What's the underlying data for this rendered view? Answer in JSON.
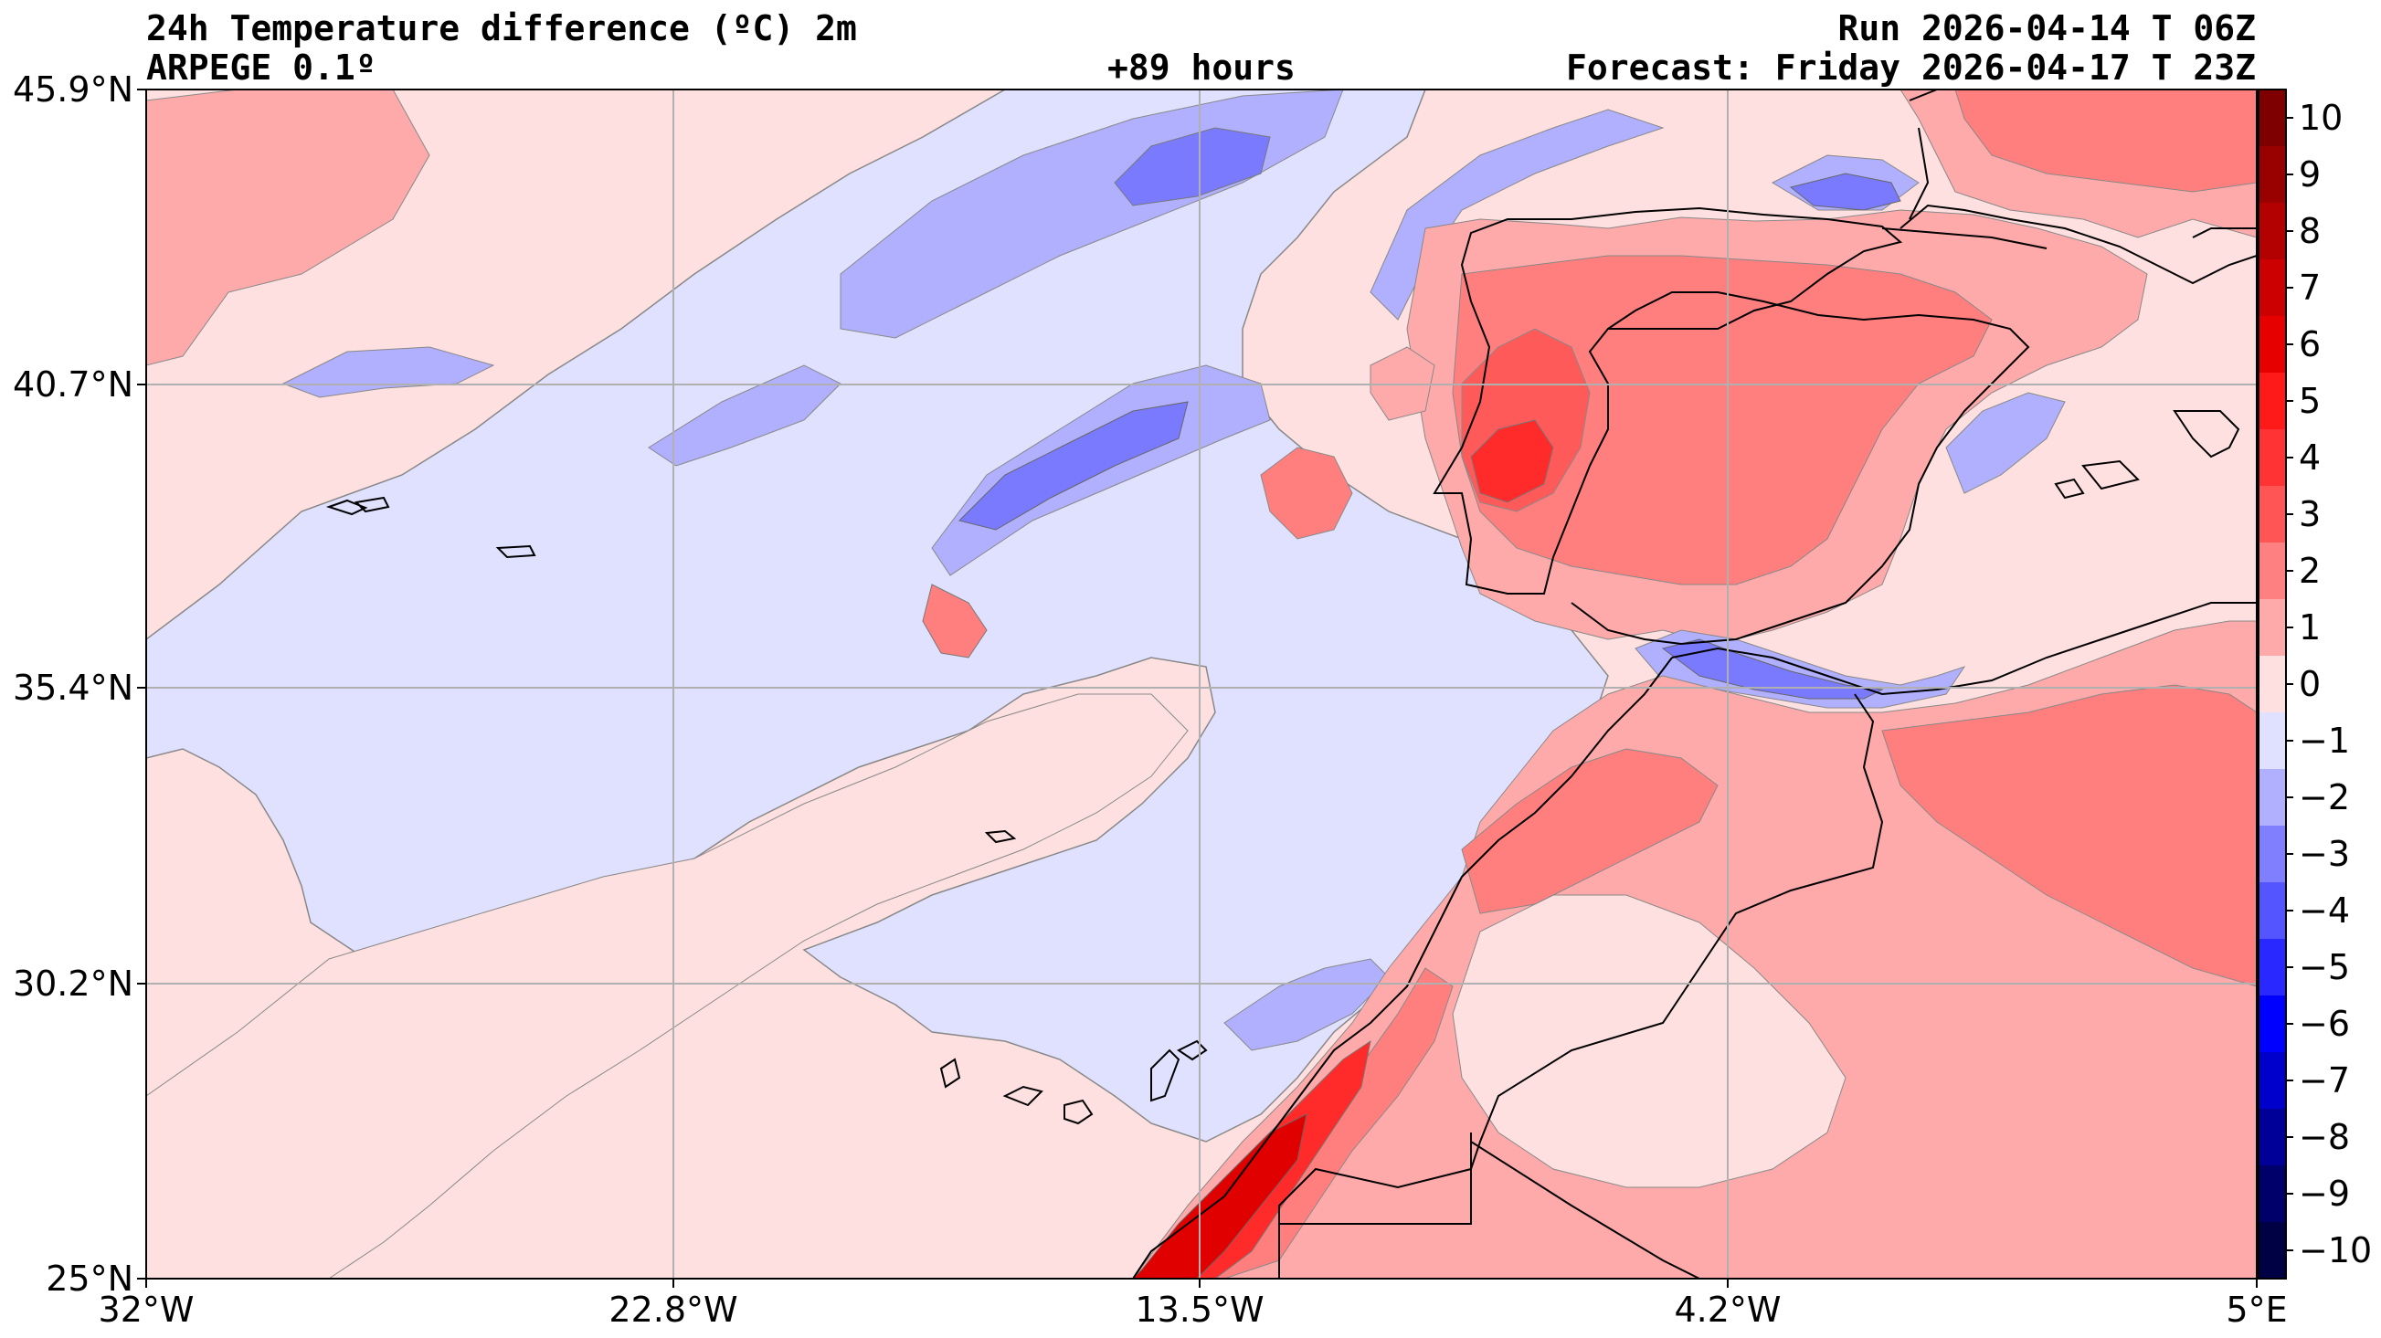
{
  "header": {
    "title": "24h Temperature difference (ºC) 2m",
    "model": "ARPEGE 0.1º",
    "lead": "+89 hours",
    "run": "Run 2026-04-14 T 06Z",
    "forecast": "Forecast: Friday 2026-04-17 T 23Z"
  },
  "axes": {
    "x_ticks": [
      "32°W",
      "22.8°W",
      "13.5°W",
      "4.2°W",
      "5°E"
    ],
    "y_ticks": [
      "45.9°N",
      "40.7°N",
      "35.4°N",
      "30.2°N",
      "25°N"
    ],
    "lon_range": [
      -32,
      5
    ],
    "lat_range": [
      25,
      45.9
    ],
    "grid": true
  },
  "colorbar": {
    "levels": [
      -10,
      -9,
      -8,
      -7,
      -6,
      -5,
      -4,
      -3,
      -2,
      -1,
      0,
      1,
      2,
      3,
      4,
      5,
      6,
      7,
      8,
      9,
      10
    ],
    "labels": [
      "10",
      "9",
      "8",
      "7",
      "6",
      "5",
      "4",
      "3",
      "2",
      "1",
      "0",
      "−1",
      "−2",
      "−3",
      "−4",
      "−5",
      "−6",
      "−7",
      "−8",
      "−9",
      "−10"
    ],
    "colors_top_to_bottom": [
      "#7f0000",
      "#990000",
      "#b30000",
      "#cc0000",
      "#e60000",
      "#ff1a1a",
      "#ff3333",
      "#ff5555",
      "#ff8080",
      "#ffaaaa",
      "#ffe0e0",
      "#e0e0ff",
      "#b0b0ff",
      "#8080ff",
      "#5555ff",
      "#2828ff",
      "#0000ff",
      "#0000cc",
      "#000099",
      "#00006b",
      "#000045"
    ]
  },
  "map": {
    "background_field": "#ffe0e0",
    "colors": {
      "neg1": "#e0e0ff",
      "neg2": "#b0b0ff",
      "neg3": "#7a7aff",
      "neg4": "#4a4aff",
      "pos1": "#ffe0e0",
      "pos2": "#ffaaaa",
      "pos3": "#ff7f7f",
      "pos4": "#ff5a5a",
      "pos5": "#ff2a2a",
      "pos6": "#e00000",
      "pos7": "#b80000",
      "coast": "#000000",
      "grid": "#b0b0b0"
    }
  }
}
